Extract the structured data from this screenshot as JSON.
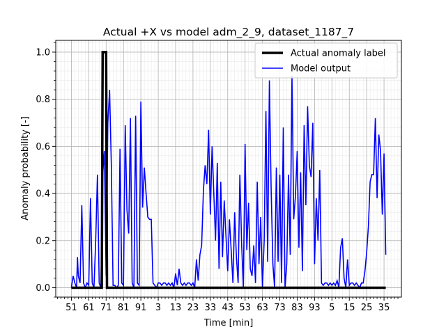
{
  "chart_data": {
    "type": "line",
    "title": "Actual +X vs model adm_2_9, dataset_1187_7",
    "xlabel": "Time [min]",
    "ylabel": "Anomaly probability [-]",
    "ylim": [
      -0.04,
      1.05
    ],
    "yticks": [
      "0.0",
      "0.2",
      "0.4",
      "0.6",
      "0.8",
      "1.0"
    ],
    "xtick_labels": [
      "51",
      "61",
      "71",
      "81",
      "91",
      "3",
      "13",
      "23",
      "33",
      "43",
      "53",
      "63",
      "73",
      "83",
      "93",
      "5",
      "15",
      "25",
      "35"
    ],
    "x_step_between_labels": 10,
    "grid": true,
    "minor_grid": true,
    "legend_position": "upper right",
    "series": [
      {
        "name": "Actual anomaly label",
        "color": "#000000",
        "linewidth": "thick",
        "values": [
          [
            0,
            0.0
          ],
          [
            17.5,
            0.0
          ],
          [
            18,
            1.0
          ],
          [
            20,
            1.0
          ],
          [
            20.5,
            0.0
          ],
          [
            181,
            0.0
          ]
        ]
      },
      {
        "name": "Model output",
        "color": "#0000ff",
        "linewidth": "normal",
        "values": [
          [
            0,
            0.0
          ],
          [
            1,
            0.05
          ],
          [
            2,
            0.02
          ],
          [
            3,
            0.0
          ],
          [
            3.5,
            0.13
          ],
          [
            4,
            0.05
          ],
          [
            5,
            0.02
          ],
          [
            6,
            0.35
          ],
          [
            7,
            0.02
          ],
          [
            8,
            0.0
          ],
          [
            9,
            0.02
          ],
          [
            10,
            0.01
          ],
          [
            11,
            0.38
          ],
          [
            12,
            0.02
          ],
          [
            13,
            0.0
          ],
          [
            14,
            0.2
          ],
          [
            15,
            0.48
          ],
          [
            16,
            0.02
          ],
          [
            17,
            0.0
          ],
          [
            18,
            0.48
          ],
          [
            19,
            0.58
          ],
          [
            20,
            0.05
          ],
          [
            21,
            0.7
          ],
          [
            22,
            0.84
          ],
          [
            23,
            0.52
          ],
          [
            24,
            0.01
          ],
          [
            25,
            0.01
          ],
          [
            26,
            0.0
          ],
          [
            27,
            0.01
          ],
          [
            28,
            0.59
          ],
          [
            29,
            0.02
          ],
          [
            30,
            0.01
          ],
          [
            31,
            0.69
          ],
          [
            32,
            0.33
          ],
          [
            33,
            0.23
          ],
          [
            34,
            0.72
          ],
          [
            35,
            0.02
          ],
          [
            36,
            0.0
          ],
          [
            37,
            0.73
          ],
          [
            38,
            0.02
          ],
          [
            39,
            0.01
          ],
          [
            40,
            0.79
          ],
          [
            41,
            0.34
          ],
          [
            42,
            0.51
          ],
          [
            43,
            0.4
          ],
          [
            44,
            0.3
          ],
          [
            45,
            0.29
          ],
          [
            46,
            0.29
          ],
          [
            47,
            0.02
          ],
          [
            48,
            0.01
          ],
          [
            49,
            0.0
          ],
          [
            50,
            0.02
          ],
          [
            51,
            0.02
          ],
          [
            52,
            0.01
          ],
          [
            53,
            0.02
          ],
          [
            54,
            0.02
          ],
          [
            55,
            0.01
          ],
          [
            56,
            0.02
          ],
          [
            57,
            0.01
          ],
          [
            58,
            0.02
          ],
          [
            59,
            0.0
          ],
          [
            60,
            0.06
          ],
          [
            61,
            0.01
          ],
          [
            62,
            0.08
          ],
          [
            63,
            0.02
          ],
          [
            64,
            0.01
          ],
          [
            65,
            0.02
          ],
          [
            66,
            0.01
          ],
          [
            67,
            0.02
          ],
          [
            68,
            0.02
          ],
          [
            69,
            0.01
          ],
          [
            70,
            0.02
          ],
          [
            71,
            0.0
          ],
          [
            72,
            0.12
          ],
          [
            73,
            0.03
          ],
          [
            74,
            0.14
          ],
          [
            75,
            0.18
          ],
          [
            76,
            0.41
          ],
          [
            77,
            0.52
          ],
          [
            78,
            0.44
          ],
          [
            79,
            0.67
          ],
          [
            80,
            0.31
          ],
          [
            81,
            0.6
          ],
          [
            82,
            0.4
          ],
          [
            83,
            0.2
          ],
          [
            84,
            0.53
          ],
          [
            85,
            0.08
          ],
          [
            86,
            0.45
          ],
          [
            87,
            0.13
          ],
          [
            88,
            0.37
          ],
          [
            89,
            0.22
          ],
          [
            90,
            0.07
          ],
          [
            91,
            0.29
          ],
          [
            92,
            0.16
          ],
          [
            93,
            0.02
          ],
          [
            94,
            0.32
          ],
          [
            95,
            0.13
          ],
          [
            96,
            0.02
          ],
          [
            97,
            0.48
          ],
          [
            98,
            0.19
          ],
          [
            99,
            0.0
          ],
          [
            100,
            0.61
          ],
          [
            101,
            0.16
          ],
          [
            102,
            0.36
          ],
          [
            103,
            0.08
          ],
          [
            104,
            0.05
          ],
          [
            105,
            0.18
          ],
          [
            106,
            0.02
          ],
          [
            107,
            0.45
          ],
          [
            108,
            0.1
          ],
          [
            109,
            0.3
          ],
          [
            110,
            0.0
          ],
          [
            111,
            0.2
          ],
          [
            112,
            0.75
          ],
          [
            113,
            0.11
          ],
          [
            114,
            0.88
          ],
          [
            115,
            0.42
          ],
          [
            116,
            0.1
          ],
          [
            117,
            0.0
          ],
          [
            118,
            0.51
          ],
          [
            119,
            0.11
          ],
          [
            120,
            0.48
          ],
          [
            121,
            0.02
          ],
          [
            122,
            0.68
          ],
          [
            123,
            0.0
          ],
          [
            124,
            0.1
          ],
          [
            125,
            0.48
          ],
          [
            126,
            0.14
          ],
          [
            127,
            0.9
          ],
          [
            128,
            0.29
          ],
          [
            129,
            0.39
          ],
          [
            130,
            0.58
          ],
          [
            131,
            0.17
          ],
          [
            132,
            0.49
          ],
          [
            133,
            0.07
          ],
          [
            134,
            0.69
          ],
          [
            135,
            0.35
          ],
          [
            136,
            0.77
          ],
          [
            137,
            0.52
          ],
          [
            138,
            0.47
          ],
          [
            139,
            0.7
          ],
          [
            140,
            0.1
          ],
          [
            141,
            0.38
          ],
          [
            142,
            0.2
          ],
          [
            143,
            0.5
          ],
          [
            144,
            0.02
          ],
          [
            145,
            0.01
          ],
          [
            146,
            0.02
          ],
          [
            147,
            0.02
          ],
          [
            148,
            0.01
          ],
          [
            149,
            0.02
          ],
          [
            150,
            0.01
          ],
          [
            151,
            0.02
          ],
          [
            152,
            0.01
          ],
          [
            153,
            0.03
          ],
          [
            154,
            0.0
          ],
          [
            155,
            0.17
          ],
          [
            156,
            0.21
          ],
          [
            157,
            0.04
          ],
          [
            158,
            0.0
          ],
          [
            159,
            0.12
          ],
          [
            160,
            0.01
          ],
          [
            161,
            0.02
          ],
          [
            162,
            0.02
          ],
          [
            163,
            0.01
          ],
          [
            164,
            0.02
          ],
          [
            165,
            0.01
          ],
          [
            166,
            0.0
          ],
          [
            167,
            0.02
          ],
          [
            168,
            0.02
          ],
          [
            169,
            0.07
          ],
          [
            170,
            0.15
          ],
          [
            171,
            0.26
          ],
          [
            172,
            0.45
          ],
          [
            173,
            0.48
          ],
          [
            174,
            0.48
          ],
          [
            175,
            0.72
          ],
          [
            176,
            0.38
          ],
          [
            177,
            0.65
          ],
          [
            178,
            0.58
          ],
          [
            179,
            0.31
          ],
          [
            180,
            0.57
          ],
          [
            181,
            0.14
          ]
        ]
      }
    ]
  }
}
